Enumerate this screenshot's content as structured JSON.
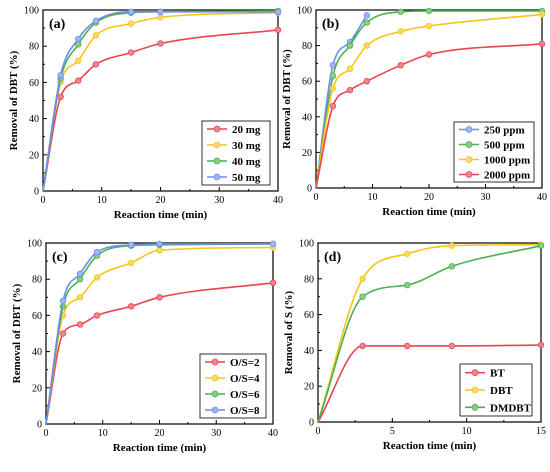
{
  "chart_data": [
    {
      "type": "line",
      "panel_label": "(a)",
      "xlabel": "Reaction time (min)",
      "ylabel": "Removal of DBT (%)",
      "xlim": [
        0,
        40
      ],
      "ylim": [
        0,
        100
      ],
      "xticks": [
        0,
        10,
        20,
        30,
        40
      ],
      "yticks": [
        0,
        20,
        40,
        60,
        80,
        100
      ],
      "legend_position": "bottom-right",
      "series": [
        {
          "name": "20 mg",
          "color": "#e8454f",
          "x": [
            0,
            3,
            6,
            9,
            15,
            20,
            40
          ],
          "y": [
            0,
            52,
            61,
            70,
            76.5,
            81.5,
            89
          ]
        },
        {
          "name": "30 mg",
          "color": "#f5c518",
          "x": [
            0,
            3,
            6,
            9,
            15,
            20,
            40
          ],
          "y": [
            0,
            60,
            72,
            86,
            92.5,
            96,
            98.5
          ]
        },
        {
          "name": "40 mg",
          "color": "#4caf50",
          "x": [
            0,
            3,
            6,
            9,
            15,
            20,
            40
          ],
          "y": [
            0,
            62,
            81,
            93,
            98.5,
            99,
            99.5
          ]
        },
        {
          "name": "50 mg",
          "color": "#6b8ef0",
          "x": [
            0,
            3,
            6,
            9,
            15,
            20,
            40
          ],
          "y": [
            0,
            64,
            84,
            94,
            99,
            99,
            99
          ]
        }
      ]
    },
    {
      "type": "line",
      "panel_label": "(b)",
      "xlabel": "Reaction time (min)",
      "ylabel": "Removal of DBT (%)",
      "xlim": [
        0,
        40
      ],
      "ylim": [
        0,
        100
      ],
      "xticks": [
        0,
        10,
        20,
        30,
        40
      ],
      "yticks": [
        0,
        20,
        40,
        60,
        80,
        100
      ],
      "legend_position": "bottom-right",
      "series": [
        {
          "name": "250 ppm",
          "color": "#6b8ef0",
          "x": [
            0,
            3,
            6,
            9
          ],
          "y": [
            0,
            69,
            82,
            97
          ]
        },
        {
          "name": "500 ppm",
          "color": "#4caf50",
          "x": [
            0,
            3,
            6,
            9,
            15,
            20,
            40
          ],
          "y": [
            0,
            63,
            80,
            93,
            99,
            99.5,
            99.5
          ]
        },
        {
          "name": "1000 ppm",
          "color": "#f5c518",
          "x": [
            0,
            3,
            6,
            9,
            15,
            20,
            40
          ],
          "y": [
            0,
            56,
            67,
            80,
            88,
            91,
            97.5
          ]
        },
        {
          "name": "2000 ppm",
          "color": "#e8454f",
          "x": [
            0,
            3,
            6,
            9,
            15,
            20,
            40
          ],
          "y": [
            0,
            46,
            55,
            60,
            69,
            75,
            81
          ]
        }
      ]
    },
    {
      "type": "line",
      "panel_label": "(c)",
      "xlabel": "Reaction time (min)",
      "ylabel": "Removal of DBT (%)",
      "xlim": [
        0,
        40
      ],
      "ylim": [
        0,
        100
      ],
      "xticks": [
        0,
        10,
        20,
        30,
        40
      ],
      "yticks": [
        0,
        20,
        40,
        60,
        80,
        100
      ],
      "legend_position": "bottom-right",
      "series": [
        {
          "name": "O/S=2",
          "color": "#e8454f",
          "x": [
            0,
            3,
            6,
            9,
            15,
            20,
            40
          ],
          "y": [
            0,
            50,
            55,
            60,
            65,
            70,
            78
          ]
        },
        {
          "name": "O/S=4",
          "color": "#f5c518",
          "x": [
            0,
            3,
            6,
            9,
            15,
            20,
            40
          ],
          "y": [
            0,
            60,
            70,
            81,
            89,
            96,
            97.5
          ]
        },
        {
          "name": "O/S=6",
          "color": "#4caf50",
          "x": [
            0,
            3,
            6,
            9,
            15,
            20,
            40
          ],
          "y": [
            0,
            65,
            80,
            93,
            98.5,
            99,
            99.5
          ]
        },
        {
          "name": "O/S=8",
          "color": "#6b8ef0",
          "x": [
            0,
            3,
            6,
            9,
            15,
            20,
            40
          ],
          "y": [
            0,
            68,
            83,
            95,
            99,
            99.5,
            99.5
          ]
        }
      ]
    },
    {
      "type": "line",
      "panel_label": "(d)",
      "xlabel": "Reaction time (min)",
      "ylabel": "Removal of S (%)",
      "xlim": [
        0,
        15
      ],
      "ylim": [
        0,
        100
      ],
      "xticks": [
        0,
        5,
        10,
        15
      ],
      "yticks": [
        0,
        20,
        40,
        60,
        80,
        100
      ],
      "legend_position": "bottom-right",
      "series": [
        {
          "name": "BT",
          "color": "#e8454f",
          "x": [
            0,
            3,
            6,
            9,
            15
          ],
          "y": [
            0,
            42.5,
            42.5,
            42.5,
            43
          ]
        },
        {
          "name": "DBT",
          "color": "#f5c518",
          "x": [
            0,
            3,
            6,
            9,
            15
          ],
          "y": [
            0,
            80,
            94,
            98.5,
            99
          ]
        },
        {
          "name": "DMDBT",
          "color": "#4caf50",
          "x": [
            0,
            3,
            6,
            9,
            15
          ],
          "y": [
            0,
            70,
            76.5,
            87,
            98.5
          ]
        }
      ]
    }
  ]
}
